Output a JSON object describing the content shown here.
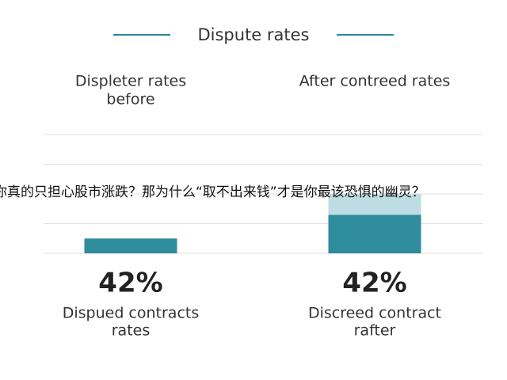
{
  "chart_data": {
    "type": "bar",
    "title": "Dispute rates",
    "categories": [
      [
        "Displeter rates",
        "before"
      ],
      [
        "After contreed rates"
      ]
    ],
    "series": [
      {
        "color": "#2e8c9c",
        "values": [
          0.5,
          1.3
        ]
      },
      {
        "color": "#bedde2",
        "values": [
          null,
          0.7
        ]
      }
    ],
    "stat_labels": [
      "42%",
      "42%"
    ],
    "captions": [
      [
        "Dispued contracts",
        "rates"
      ],
      [
        "Discreed contract",
        "rafter"
      ]
    ],
    "ylim": [
      0,
      4
    ],
    "yticks": [
      0,
      1,
      2,
      3,
      4
    ],
    "grid": true
  },
  "overlay_text": "你真的只担心股市涨跌？那为什么“取不出来钱”才是你最该恐惧的幽灵？"
}
